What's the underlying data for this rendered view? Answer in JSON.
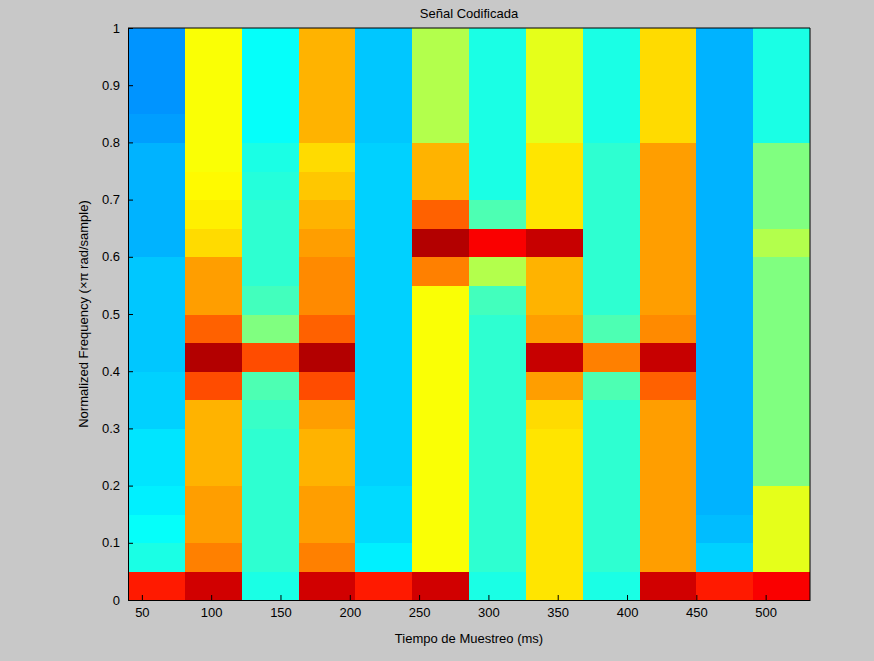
{
  "chart_data": {
    "type": "heatmap",
    "title": "Señal Codificada",
    "x_label": "Tiempo de Muestreo (ms)",
    "y_label": "Normalized Frequency  (×π rad/sample)",
    "xlim": [
      40,
      532
    ],
    "ylim": [
      0,
      1
    ],
    "xticks": [
      50,
      100,
      150,
      200,
      250,
      300,
      350,
      400,
      450,
      500
    ],
    "yticks": [
      0,
      0.1,
      0.2,
      0.3,
      0.4,
      0.5,
      0.6,
      0.7,
      0.8,
      0.9,
      1
    ],
    "x_edges": [
      40,
      81,
      122,
      163,
      204,
      245,
      286,
      327,
      368,
      409,
      450,
      491,
      532
    ],
    "y_edges": [
      0,
      0.05,
      0.1,
      0.15,
      0.2,
      0.25,
      0.3,
      0.35,
      0.4,
      0.45,
      0.5,
      0.55,
      0.6,
      0.65,
      0.7,
      0.75,
      0.8,
      0.85,
      0.9,
      0.95,
      1
    ],
    "zlim": [
      0,
      1
    ],
    "z": [
      [
        0.85,
        0.4,
        0.38,
        0.36,
        0.35,
        0.35,
        0.33,
        0.33,
        0.32,
        0.32,
        0.32,
        0.32,
        0.3,
        0.3,
        0.3,
        0.3,
        0.28,
        0.27,
        0.27,
        0.27
      ],
      [
        0.92,
        0.75,
        0.72,
        0.72,
        0.7,
        0.7,
        0.7,
        0.8,
        0.95,
        0.78,
        0.72,
        0.72,
        0.66,
        0.64,
        0.63,
        0.62,
        0.62,
        0.62,
        0.62,
        0.62
      ],
      [
        0.4,
        0.42,
        0.42,
        0.42,
        0.42,
        0.42,
        0.43,
        0.45,
        0.8,
        0.5,
        0.44,
        0.42,
        0.42,
        0.42,
        0.41,
        0.4,
        0.38,
        0.38,
        0.38,
        0.38
      ],
      [
        0.92,
        0.75,
        0.72,
        0.72,
        0.7,
        0.7,
        0.72,
        0.8,
        0.95,
        0.78,
        0.74,
        0.74,
        0.72,
        0.7,
        0.68,
        0.66,
        0.7,
        0.7,
        0.7,
        0.7
      ],
      [
        0.85,
        0.36,
        0.34,
        0.34,
        0.33,
        0.33,
        0.33,
        0.33,
        0.33,
        0.33,
        0.33,
        0.33,
        0.33,
        0.33,
        0.33,
        0.33,
        0.32,
        0.32,
        0.32,
        0.32
      ],
      [
        0.92,
        0.62,
        0.62,
        0.62,
        0.62,
        0.62,
        0.62,
        0.62,
        0.62,
        0.62,
        0.62,
        0.75,
        0.95,
        0.78,
        0.7,
        0.7,
        0.55,
        0.55,
        0.55,
        0.55
      ],
      [
        0.4,
        0.42,
        0.42,
        0.42,
        0.42,
        0.42,
        0.42,
        0.42,
        0.42,
        0.42,
        0.44,
        0.55,
        0.88,
        0.45,
        0.4,
        0.4,
        0.4,
        0.4,
        0.4,
        0.4
      ],
      [
        0.65,
        0.65,
        0.65,
        0.65,
        0.65,
        0.65,
        0.66,
        0.72,
        0.93,
        0.72,
        0.7,
        0.7,
        0.93,
        0.65,
        0.65,
        0.65,
        0.6,
        0.6,
        0.6,
        0.6
      ],
      [
        0.4,
        0.42,
        0.42,
        0.42,
        0.42,
        0.42,
        0.42,
        0.45,
        0.75,
        0.45,
        0.42,
        0.42,
        0.42,
        0.42,
        0.42,
        0.42,
        0.4,
        0.4,
        0.4,
        0.4
      ],
      [
        0.92,
        0.72,
        0.72,
        0.72,
        0.72,
        0.72,
        0.72,
        0.78,
        0.93,
        0.74,
        0.72,
        0.72,
        0.72,
        0.72,
        0.72,
        0.72,
        0.66,
        0.66,
        0.66,
        0.66
      ],
      [
        0.85,
        0.33,
        0.31,
        0.3,
        0.3,
        0.3,
        0.3,
        0.3,
        0.3,
        0.3,
        0.3,
        0.3,
        0.3,
        0.3,
        0.3,
        0.3,
        0.3,
        0.3,
        0.3,
        0.3
      ],
      [
        0.88,
        0.6,
        0.6,
        0.6,
        0.5,
        0.5,
        0.5,
        0.5,
        0.5,
        0.5,
        0.5,
        0.5,
        0.55,
        0.5,
        0.5,
        0.5,
        0.4,
        0.4,
        0.4,
        0.4
      ]
    ]
  }
}
